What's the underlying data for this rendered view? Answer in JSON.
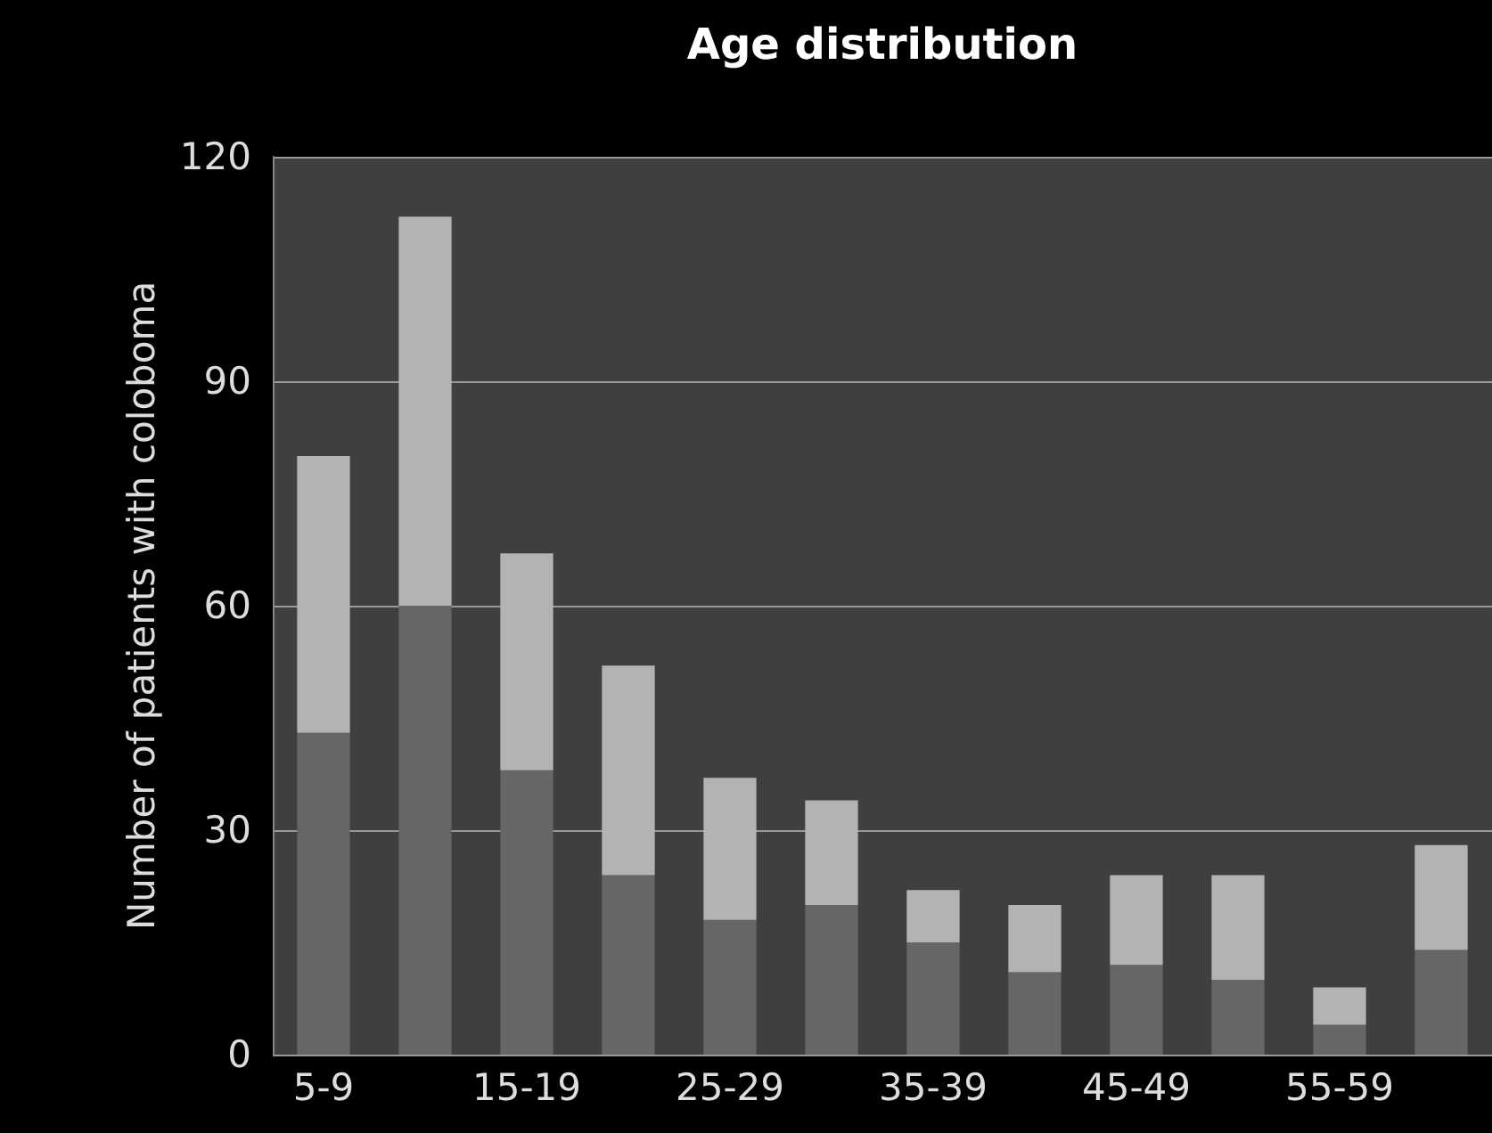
{
  "chart_data": {
    "type": "bar",
    "title": "Age distribution",
    "ylabel": "Number of patients with coloboma",
    "categories": [
      "5-9",
      null,
      "15-19",
      null,
      "25-29",
      null,
      "35-39",
      null,
      "45-49",
      null,
      "55-59",
      null
    ],
    "stacked": true,
    "series": [
      {
        "color": "#666666",
        "values": [
          43,
          60,
          38,
          24,
          18,
          20,
          15,
          11,
          12,
          10,
          4,
          14
        ]
      },
      {
        "color": "#b3b3b3",
        "values": [
          37,
          52,
          29,
          28,
          19,
          14,
          7,
          9,
          12,
          14,
          5,
          14
        ]
      }
    ],
    "ylim": [
      0,
      120
    ],
    "yticks": [
      0,
      30,
      60,
      90,
      120
    ],
    "grid": "y"
  }
}
